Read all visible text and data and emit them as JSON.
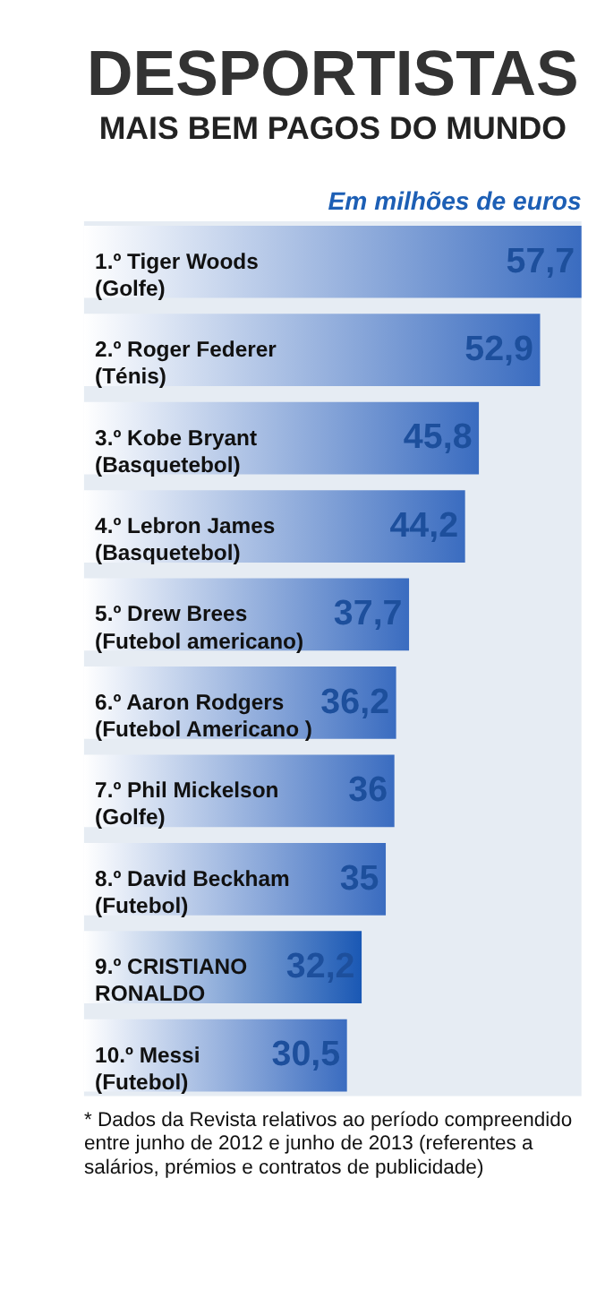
{
  "chart_data": {
    "type": "bar",
    "orientation": "horizontal",
    "title": "DESPORTISTAS",
    "subtitle": "MAIS BEM PAGOS DO MUNDO",
    "categories": [
      "1.º\nTiger Woods\n(Golfe)",
      "2.º\nRoger Federer\n(Ténis)",
      "3.º\nKobe Bryant\n(Basquetebol)",
      "4.º\nLebron James\n(Basquetebol)",
      "5.º\nDrew Brees\n(Futebol americano)",
      "6.º\nAaron Rodgers\n(Futebol Americano )",
      "7.º\nPhil Mickelson\n(Golfe)",
      "8.º\nDavid Beckham\n(Futebol)",
      "9.º\nCRISTIANO\nRONALDO",
      "10.º\nMessi\n(Futebol)"
    ],
    "values": [
      57.7,
      52.9,
      45.8,
      44.2,
      37.7,
      36.2,
      36,
      35,
      32.2,
      30.5
    ],
    "value_labels": [
      "57,7",
      "52,9",
      "45,8",
      "44,2",
      "37,7",
      "36,2",
      "36",
      "35",
      "32,2",
      "30,5"
    ],
    "colors": [
      "#3a6cc0",
      "#3a6cc0",
      "#3a6cc0",
      "#3a6cc0",
      "#3a6cc0",
      "#3a6cc0",
      "#3a6cc0",
      "#3a6cc0",
      "#1a58b4",
      "#3a6cc0"
    ],
    "annotations": [
      "Em milhões de euros",
      "* Dados da Revista relativos ao período compreendido entre junho de 2012 e junho de 2013 (referentes a salários, prémios e contratos de publicidade)"
    ]
  }
}
